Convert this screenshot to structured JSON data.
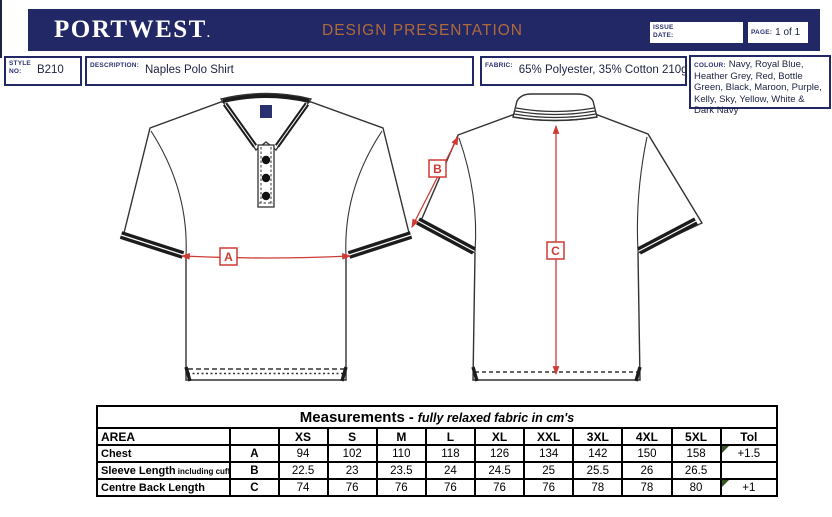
{
  "header": {
    "brand": "PORTWEST",
    "brand_suffix": ".",
    "title": "DESIGN PRESENTATION",
    "issue_label_line1": "ISSUE",
    "issue_label_line2": "DATE:",
    "issue_value": "",
    "page_label": "PAGE:",
    "page_value": "1 of 1",
    "bar_color": "#222866",
    "title_color": "#b06a3a"
  },
  "info": {
    "style_label_line1": "STYLE",
    "style_label_line2": "NO:",
    "style_value": "B210",
    "description_label": "DESCRIPTION:",
    "description_value": "Naples Polo Shirt",
    "fabric_label": "FABRIC:",
    "fabric_value": "65% Polyester, 35% Cotton 210g",
    "colour_label": "COLOUR:",
    "colour_value": "Navy, Royal Blue, Heather Grey, Red, Bottle Green, Black, Maroon, Purple, Kelly, Sky, Yellow, White & Dark Navy"
  },
  "drawing": {
    "labels": {
      "chest": "A",
      "sleeve": "B",
      "back_length": "C"
    },
    "measure_color": "#cf3a34",
    "outline_color": "#333333"
  },
  "measurements": {
    "title_bold": "Measurements",
    "title_sep": " - ",
    "title_italic": "fully relaxed fabric in cm's",
    "columns": [
      "AREA",
      "",
      "XS",
      "S",
      "M",
      "L",
      "XL",
      "XXL",
      "3XL",
      "4XL",
      "5XL",
      "Tol"
    ],
    "rows": [
      {
        "area": "Chest",
        "area_note": "",
        "code": "A",
        "values": [
          "94",
          "102",
          "110",
          "118",
          "126",
          "134",
          "142",
          "150",
          "158"
        ],
        "tol": "+1.5",
        "tol_flag": true
      },
      {
        "area": "Sleeve Length",
        "area_note": "including cuff",
        "code": "B",
        "values": [
          "22.5",
          "23",
          "23.5",
          "24",
          "24.5",
          "25",
          "25.5",
          "26",
          "26.5"
        ],
        "tol": "",
        "tol_flag": false
      },
      {
        "area": "Centre Back Length",
        "area_note": "",
        "code": "C",
        "values": [
          "74",
          "76",
          "76",
          "76",
          "76",
          "76",
          "78",
          "78",
          "80"
        ],
        "tol": "+1",
        "tol_flag": true
      }
    ],
    "flag_color": "#375623"
  }
}
